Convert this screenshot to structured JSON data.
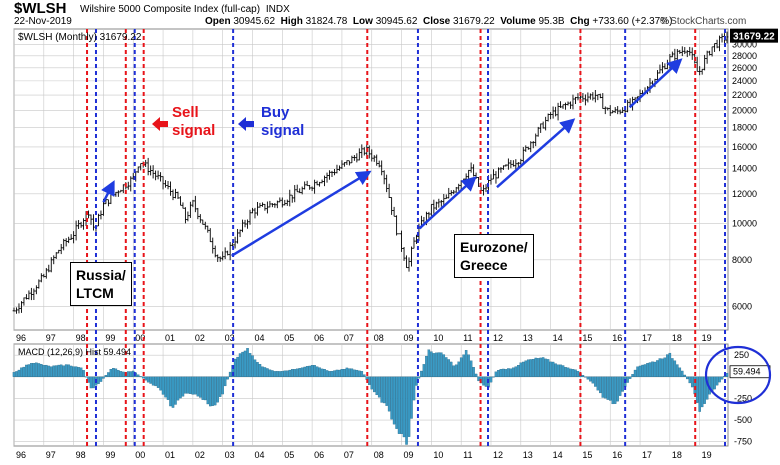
{
  "header": {
    "symbol": "$WLSH",
    "name": "Wilshire 5000 Composite Index (full-cap)",
    "exchange": "INDX",
    "date": "22-Nov-2019",
    "open_label": "Open",
    "open": "30945.62",
    "high_label": "High",
    "high": "31824.78",
    "low_label": "Low",
    "low": "30945.62",
    "close_label": "Close",
    "close": "31679.22",
    "volume_label": "Volume",
    "volume": "95.3B",
    "chg_label": "Chg",
    "chg": "+733.60 (+2.37%)",
    "watermark": "© StockCharts.com"
  },
  "colors": {
    "bar": "#000000",
    "sell_line": "#e8141a",
    "buy_line": "#1f2fd6",
    "arrow": "#1f3ce0",
    "macd_hist": "#3a9ac4",
    "grid": "#c8c8c8",
    "last_price_bg": "#000000"
  },
  "annotations": {
    "sell": "Sell\nsignal",
    "buy": "Buy\nsignal",
    "box1": "Russia/\nLTCM",
    "box2": "Eurozone/\nGreece"
  },
  "chart_data": [
    {
      "type": "bar",
      "legend": "$WLSH (Monthly) 31679.22",
      "last_value": "31679.22",
      "scale": "log",
      "ylim": [
        5200,
        33000
      ],
      "y_ticks": [
        6000,
        8000,
        10000,
        12000,
        14000,
        16000,
        18000,
        20000,
        22000,
        24000,
        26000,
        28000,
        30000
      ],
      "x_range": [
        1996.0,
        2019.95
      ],
      "x_tick_labels": [
        "96",
        "97",
        "98",
        "99",
        "00",
        "01",
        "02",
        "03",
        "04",
        "05",
        "06",
        "07",
        "08",
        "09",
        "10",
        "11",
        "12",
        "13",
        "14",
        "15",
        "16",
        "17",
        "18",
        "19"
      ],
      "x_ticks": [
        1996,
        1997,
        1998,
        1999,
        2000,
        2001,
        2002,
        2003,
        2004,
        2005,
        2006,
        2007,
        2008,
        2009,
        2010,
        2011,
        2012,
        2013,
        2014,
        2015,
        2016,
        2017,
        2018,
        2019
      ],
      "close_path": [
        [
          1996.0,
          5850
        ],
        [
          1996.5,
          6500
        ],
        [
          1997.0,
          7200
        ],
        [
          1997.5,
          8500
        ],
        [
          1998.0,
          9400
        ],
        [
          1998.5,
          10800
        ],
        [
          1998.7,
          9600
        ],
        [
          1999.0,
          11200
        ],
        [
          1999.5,
          12300
        ],
        [
          2000.0,
          13200
        ],
        [
          2000.2,
          14700
        ],
        [
          2000.6,
          13800
        ],
        [
          2001.0,
          12800
        ],
        [
          2001.5,
          11600
        ],
        [
          2001.75,
          10300
        ],
        [
          2002.0,
          11300
        ],
        [
          2002.5,
          9400
        ],
        [
          2002.8,
          8200
        ],
        [
          2003.0,
          8000
        ],
        [
          2003.5,
          9300
        ],
        [
          2004.0,
          10800
        ],
        [
          2005.0,
          11500
        ],
        [
          2006.0,
          12700
        ],
        [
          2007.0,
          14200
        ],
        [
          2007.8,
          15700
        ],
        [
          2008.3,
          14400
        ],
        [
          2008.8,
          9800
        ],
        [
          2009.2,
          7600
        ],
        [
          2009.5,
          9400
        ],
        [
          2010.0,
          11000
        ],
        [
          2010.5,
          11600
        ],
        [
          2011.3,
          14000
        ],
        [
          2011.7,
          12000
        ],
        [
          2012.0,
          13200
        ],
        [
          2013.0,
          15000
        ],
        [
          2014.0,
          19500
        ],
        [
          2014.9,
          21600
        ],
        [
          2015.5,
          22000
        ],
        [
          2015.9,
          20000
        ],
        [
          2016.2,
          19800
        ],
        [
          2016.8,
          21000
        ],
        [
          2017.5,
          24500
        ],
        [
          2018.0,
          27500
        ],
        [
          2018.6,
          29500
        ],
        [
          2018.95,
          25000
        ],
        [
          2019.4,
          29500
        ],
        [
          2019.95,
          31679
        ]
      ],
      "sell_signals": [
        1998.45,
        1999.75,
        2000.35,
        2007.85,
        2011.65,
        2015.0,
        2018.85
      ],
      "buy_signals": [
        1998.75,
        2000.05,
        2003.35,
        2009.55,
        2011.9,
        2016.5,
        2019.85
      ],
      "trend_arrows": [
        {
          "from": [
            1999.0,
            11400
          ],
          "to": [
            1999.3,
            12700
          ]
        },
        {
          "from": [
            2003.3,
            8200
          ],
          "to": [
            2007.85,
            13600
          ]
        },
        {
          "from": [
            2009.6,
            9700
          ],
          "to": [
            2011.4,
            13100
          ]
        },
        {
          "from": [
            2012.2,
            12500
          ],
          "to": [
            2014.7,
            18700
          ]
        },
        {
          "from": [
            2016.65,
            20400
          ],
          "to": [
            2018.3,
            27000
          ]
        }
      ]
    },
    {
      "type": "bar",
      "legend": "MACD (12,26,9) Hist 59.494",
      "last_value": "59.494",
      "ylim": [
        -800,
        380
      ],
      "y_ticks": [
        250,
        -250,
        -500,
        -750
      ],
      "histogram_path": [
        [
          1996.0,
          50
        ],
        [
          1996.6,
          170
        ],
        [
          1997.2,
          120
        ],
        [
          1997.8,
          140
        ],
        [
          1998.3,
          100
        ],
        [
          1998.6,
          -150
        ],
        [
          1998.9,
          -60
        ],
        [
          1999.3,
          110
        ],
        [
          1999.7,
          50
        ],
        [
          2000.0,
          70
        ],
        [
          2000.5,
          -60
        ],
        [
          2000.9,
          -140
        ],
        [
          2001.3,
          -350
        ],
        [
          2001.8,
          -180
        ],
        [
          2002.2,
          -220
        ],
        [
          2002.7,
          -360
        ],
        [
          2003.0,
          -190
        ],
        [
          2003.4,
          200
        ],
        [
          2003.8,
          330
        ],
        [
          2004.3,
          120
        ],
        [
          2004.8,
          60
        ],
        [
          2005.3,
          80
        ],
        [
          2006.0,
          140
        ],
        [
          2006.6,
          60
        ],
        [
          2007.2,
          100
        ],
        [
          2007.7,
          60
        ],
        [
          2008.0,
          -150
        ],
        [
          2008.5,
          -350
        ],
        [
          2008.9,
          -650
        ],
        [
          2009.2,
          -770
        ],
        [
          2009.5,
          -100
        ],
        [
          2009.9,
          300
        ],
        [
          2010.4,
          260
        ],
        [
          2010.8,
          120
        ],
        [
          2011.2,
          310
        ],
        [
          2011.6,
          -60
        ],
        [
          2011.9,
          -130
        ],
        [
          2012.2,
          80
        ],
        [
          2012.7,
          100
        ],
        [
          2013.2,
          190
        ],
        [
          2013.7,
          220
        ],
        [
          2014.3,
          140
        ],
        [
          2014.9,
          70
        ],
        [
          2015.4,
          -70
        ],
        [
          2015.8,
          -250
        ],
        [
          2016.2,
          -320
        ],
        [
          2016.5,
          -120
        ],
        [
          2016.9,
          120
        ],
        [
          2017.5,
          180
        ],
        [
          2018.0,
          260
        ],
        [
          2018.4,
          80
        ],
        [
          2018.8,
          -150
        ],
        [
          2019.0,
          -380
        ],
        [
          2019.4,
          -180
        ],
        [
          2019.95,
          59
        ]
      ]
    }
  ]
}
